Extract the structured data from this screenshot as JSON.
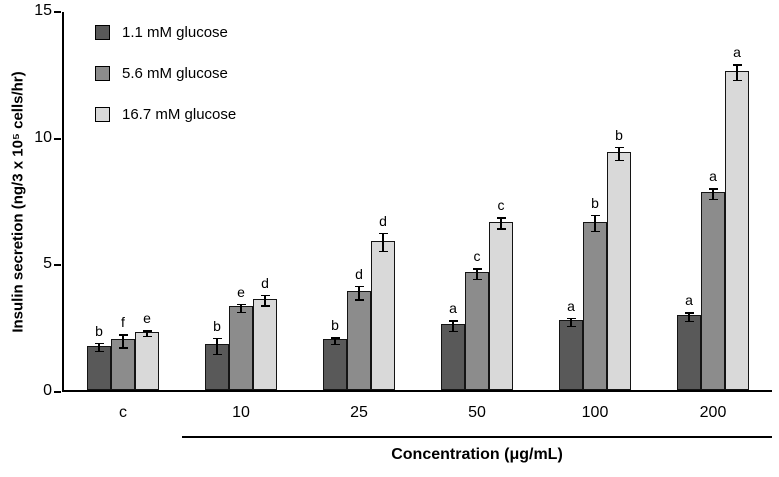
{
  "chart_data": {
    "type": "bar",
    "title": "",
    "ylabel": "Insulin secretion (ng/3 x 10⁵ cells/hr)",
    "xlabel": "Concentration (μg/mL)",
    "categories": [
      "c",
      "10",
      "25",
      "50",
      "100",
      "200"
    ],
    "ylim": [
      0,
      15
    ],
    "yticks": [
      0,
      5,
      10,
      15
    ],
    "grid": "off",
    "legend_position": "top-left",
    "series": [
      {
        "name": "1.1 mM glucose",
        "color": "#595959",
        "values": [
          1.75,
          1.8,
          2.0,
          2.6,
          2.75,
          2.95
        ],
        "errors": [
          0.15,
          0.3,
          0.12,
          0.2,
          0.15,
          0.15
        ],
        "labels": [
          "b",
          "b",
          "b",
          "a",
          "a",
          "a"
        ]
      },
      {
        "name": "5.6 mM glucose",
        "color": "#8c8c8c",
        "values": [
          2.0,
          3.3,
          3.9,
          4.65,
          6.65,
          7.8
        ],
        "errors": [
          0.25,
          0.15,
          0.25,
          0.2,
          0.3,
          0.2
        ],
        "labels": [
          "f",
          "e",
          "d",
          "c",
          "b",
          "a"
        ]
      },
      {
        "name": "16.7 mM glucose",
        "color": "#d9d9d9",
        "values": [
          2.3,
          3.6,
          5.9,
          6.65,
          9.4,
          12.6
        ],
        "errors": [
          0.1,
          0.2,
          0.35,
          0.2,
          0.25,
          0.3
        ],
        "labels": [
          "e",
          "d",
          "d",
          "c",
          "b",
          "a"
        ]
      }
    ],
    "group_underline": {
      "from_category": "10",
      "to_category": "200"
    }
  }
}
